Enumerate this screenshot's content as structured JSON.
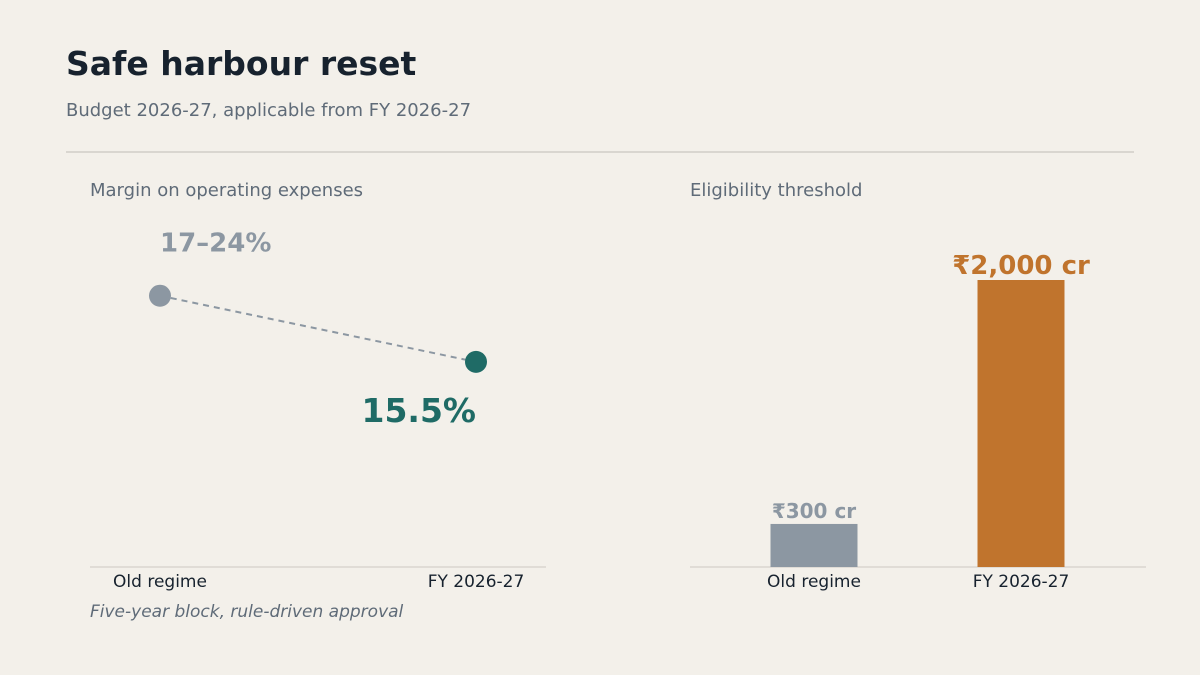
{
  "header": {
    "title": "Safe harbour reset",
    "subtitle": "Budget 2026-27, applicable from FY 2026-27"
  },
  "footnote": "Five-year block, rule-driven approval",
  "colors": {
    "old": "#8c97a2",
    "new_margin": "#1f6b66",
    "new_threshold": "#c0742d",
    "axis": "#d9d6d0",
    "tick_text": "#17222e"
  },
  "chart_data": [
    {
      "type": "line",
      "title": "Margin on operating expenses",
      "categories": [
        "Old regime",
        "FY 2026-27"
      ],
      "values": [
        20.5,
        15.5
      ],
      "data_labels": [
        "17–24%",
        "15.5%"
      ],
      "ylim": [
        0,
        30
      ],
      "line_style": "dashed",
      "grid": false
    },
    {
      "type": "bar",
      "title": "Eligibility threshold",
      "categories": [
        "Old regime",
        "FY 2026-27"
      ],
      "values": [
        300,
        2000
      ],
      "data_labels": [
        "₹300 cr",
        "₹2,000 cr"
      ],
      "ylim": [
        0,
        2000
      ],
      "grid": false
    }
  ]
}
